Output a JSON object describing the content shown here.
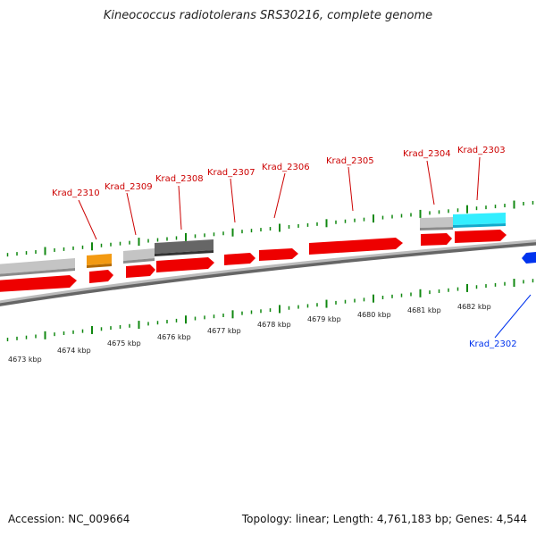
{
  "title": "Kineococcus radiotolerans SRS30216, complete genome",
  "footer": {
    "accession": "Accession: NC_009664",
    "summary": "Topology: linear; Length: 4,761,183 bp; Genes: 4,544"
  },
  "colors": {
    "forward_gene": "#ee0000",
    "other_gene": "#0033ee",
    "tick": "#118811",
    "backbone": "#888888",
    "feature_light_gray": "#c0c0c0",
    "feature_dark_gray": "#666666",
    "feature_orange": "#f39a12",
    "feature_cyan": "#33eeff"
  },
  "genes": [
    {
      "name": "Krad_2310",
      "strand": "+",
      "color": "red"
    },
    {
      "name": "Krad_2309",
      "strand": "+",
      "color": "red"
    },
    {
      "name": "Krad_2308",
      "strand": "+",
      "color": "red"
    },
    {
      "name": "Krad_2307",
      "strand": "+",
      "color": "red"
    },
    {
      "name": "Krad_2306",
      "strand": "+",
      "color": "red"
    },
    {
      "name": "Krad_2305",
      "strand": "+",
      "color": "red"
    },
    {
      "name": "Krad_2304",
      "strand": "+",
      "color": "red"
    },
    {
      "name": "Krad_2303",
      "strand": "+",
      "color": "red"
    },
    {
      "name": "Krad_2302",
      "strand": "-",
      "color": "blue"
    }
  ],
  "scale_labels": [
    "4673 kbp",
    "4674 kbp",
    "4675 kbp",
    "4676 kbp",
    "4677 kbp",
    "4678 kbp",
    "4679 kbp",
    "4680 kbp",
    "4681 kbp",
    "4682 kbp"
  ]
}
